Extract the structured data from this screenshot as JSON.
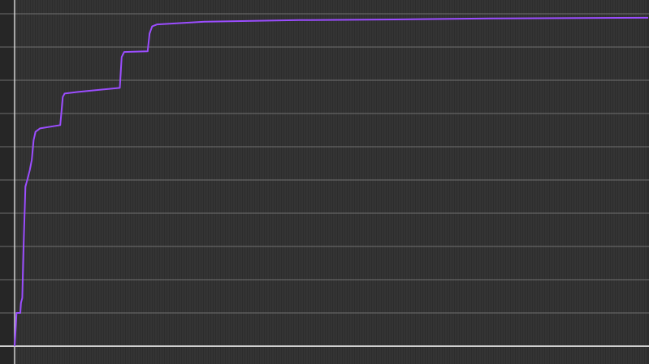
{
  "chart_data": {
    "type": "line",
    "title": "",
    "xlabel": "",
    "ylabel": "",
    "xlim": [
      0,
      100
    ],
    "ylim": [
      0,
      10
    ],
    "grid": true,
    "legend": "none",
    "colors": {
      "background": "#2d2d2d",
      "margin": "#262626",
      "grid_major": "#8a8a8a",
      "grid_minor": "#3a3a3a",
      "axis": "#cfcfcf",
      "line": "#9b4dff"
    },
    "series": [
      {
        "values": [
          [
            0.0,
            0.0
          ],
          [
            0.1,
            0.3
          ],
          [
            0.3,
            1.0
          ],
          [
            0.9,
            1.0
          ],
          [
            1.0,
            1.3
          ],
          [
            1.2,
            1.45
          ],
          [
            1.4,
            2.9
          ],
          [
            1.7,
            4.8
          ],
          [
            2.0,
            5.0
          ],
          [
            2.4,
            5.3
          ],
          [
            2.7,
            5.6
          ],
          [
            3.0,
            6.2
          ],
          [
            3.3,
            6.45
          ],
          [
            4.0,
            6.55
          ],
          [
            7.2,
            6.65
          ],
          [
            7.6,
            7.5
          ],
          [
            7.9,
            7.6
          ],
          [
            10.0,
            7.65
          ],
          [
            16.6,
            7.77
          ],
          [
            16.9,
            8.7
          ],
          [
            17.3,
            8.85
          ],
          [
            21.0,
            8.87
          ],
          [
            21.3,
            9.4
          ],
          [
            21.7,
            9.62
          ],
          [
            22.5,
            9.68
          ],
          [
            30.0,
            9.76
          ],
          [
            45.0,
            9.81
          ],
          [
            60.0,
            9.83
          ],
          [
            75.0,
            9.86
          ],
          [
            100.0,
            9.88
          ]
        ]
      }
    ]
  }
}
